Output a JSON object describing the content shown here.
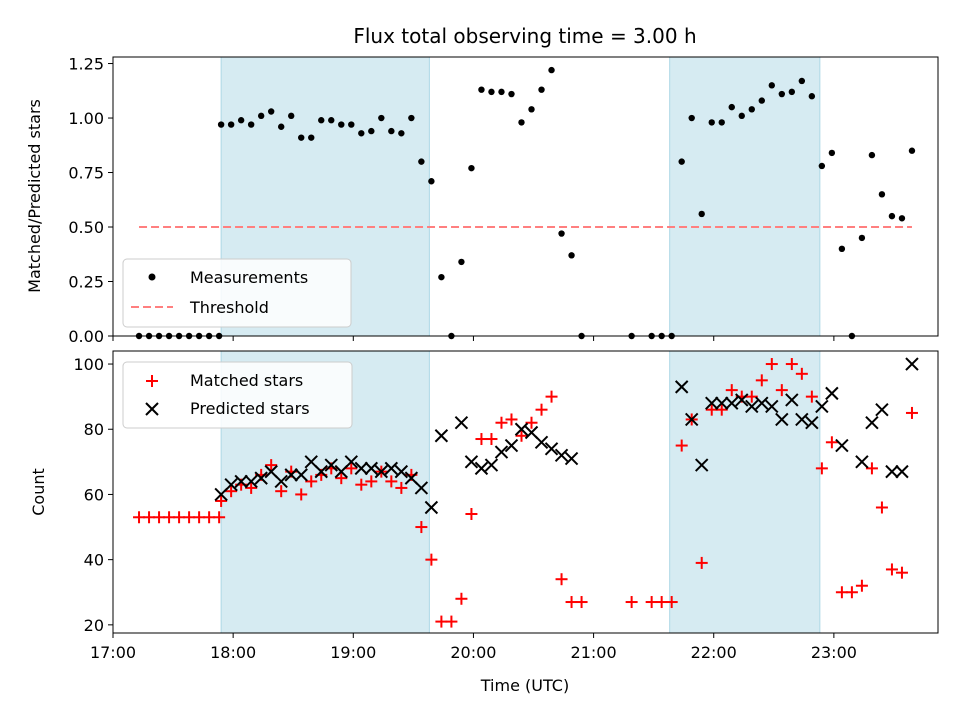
{
  "chart_data": [
    {
      "type": "scatter",
      "title": "Flux total observing time = 3.00 h",
      "xlabel": "",
      "ylabel": "Matched/Predicted stars",
      "xlim": [
        "17:00",
        "23:52"
      ],
      "ylim": [
        0,
        1.28
      ],
      "yticks": [
        "0.00",
        "0.25",
        "0.50",
        "0.75",
        "1.00",
        "1.25"
      ],
      "shaded_intervals": [
        [
          "17:54",
          "19:38"
        ],
        [
          "21:38",
          "22:53"
        ]
      ],
      "legend_position": "lower-left",
      "series": [
        {
          "name": "Measurements",
          "color": "#000000",
          "marker": "dot",
          "points": [
            [
              "17:13",
              0
            ],
            [
              "17:18",
              0
            ],
            [
              "17:23",
              0
            ],
            [
              "17:28",
              0
            ],
            [
              "17:33",
              0
            ],
            [
              "17:38",
              0
            ],
            [
              "17:43",
              0
            ],
            [
              "17:48",
              0
            ],
            [
              "17:53",
              0
            ],
            [
              "17:54",
              0.97
            ],
            [
              "17:59",
              0.97
            ],
            [
              "18:04",
              0.99
            ],
            [
              "18:09",
              0.97
            ],
            [
              "18:14",
              1.01
            ],
            [
              "18:19",
              1.03
            ],
            [
              "18:24",
              0.96
            ],
            [
              "18:29",
              1.01
            ],
            [
              "18:34",
              0.91
            ],
            [
              "18:39",
              0.91
            ],
            [
              "18:44",
              0.99
            ],
            [
              "18:49",
              0.99
            ],
            [
              "18:54",
              0.97
            ],
            [
              "18:59",
              0.97
            ],
            [
              "19:04",
              0.93
            ],
            [
              "19:09",
              0.94
            ],
            [
              "19:14",
              1.0
            ],
            [
              "19:19",
              0.94
            ],
            [
              "19:24",
              0.93
            ],
            [
              "19:29",
              1.0
            ],
            [
              "19:34",
              0.8
            ],
            [
              "19:39",
              0.71
            ],
            [
              "19:44",
              0.27
            ],
            [
              "19:49",
              0
            ],
            [
              "19:54",
              0.34
            ],
            [
              "19:59",
              0.77
            ],
            [
              "20:04",
              1.13
            ],
            [
              "20:09",
              1.12
            ],
            [
              "20:14",
              1.12
            ],
            [
              "20:19",
              1.11
            ],
            [
              "20:24",
              0.98
            ],
            [
              "20:29",
              1.04
            ],
            [
              "20:34",
              1.13
            ],
            [
              "20:39",
              1.22
            ],
            [
              "20:44",
              0.47
            ],
            [
              "20:49",
              0.37
            ],
            [
              "20:54",
              0
            ],
            [
              "21:19",
              0
            ],
            [
              "21:29",
              0
            ],
            [
              "21:34",
              0
            ],
            [
              "21:39",
              0
            ],
            [
              "21:44",
              0.8
            ],
            [
              "21:49",
              1.0
            ],
            [
              "21:54",
              0.56
            ],
            [
              "21:59",
              0.98
            ],
            [
              "22:04",
              0.98
            ],
            [
              "22:09",
              1.05
            ],
            [
              "22:14",
              1.01
            ],
            [
              "22:19",
              1.04
            ],
            [
              "22:24",
              1.08
            ],
            [
              "22:29",
              1.15
            ],
            [
              "22:34",
              1.11
            ],
            [
              "22:39",
              1.12
            ],
            [
              "22:44",
              1.17
            ],
            [
              "22:49",
              1.1
            ],
            [
              "22:54",
              0.78
            ],
            [
              "22:59",
              0.84
            ],
            [
              "23:04",
              0.4
            ],
            [
              "23:09",
              0
            ],
            [
              "23:14",
              0.45
            ],
            [
              "23:19",
              0.83
            ],
            [
              "23:24",
              0.65
            ],
            [
              "23:29",
              0.55
            ],
            [
              "23:34",
              0.54
            ],
            [
              "23:39",
              0.85
            ]
          ]
        },
        {
          "name": "Threshold",
          "color": "#ff7f7f",
          "marker": "dashed-line",
          "points": [
            [
              "17:13",
              0.5
            ],
            [
              "23:39",
              0.5
            ]
          ]
        }
      ]
    },
    {
      "type": "scatter",
      "title": "",
      "xlabel": "Time (UTC)",
      "ylabel": "Count",
      "xlim": [
        "17:00",
        "23:52"
      ],
      "ylim": [
        17.5,
        104
      ],
      "yticks": [
        "20",
        "40",
        "60",
        "80",
        "100"
      ],
      "xticks": [
        "17:00",
        "18:00",
        "19:00",
        "20:00",
        "21:00",
        "22:00",
        "23:00"
      ],
      "shaded_intervals": [
        [
          "17:54",
          "19:38"
        ],
        [
          "21:38",
          "22:53"
        ]
      ],
      "legend_position": "top-left",
      "series": [
        {
          "name": "Matched stars",
          "color": "#ff0000",
          "marker": "plus",
          "points": [
            [
              "17:13",
              53
            ],
            [
              "17:18",
              53
            ],
            [
              "17:23",
              53
            ],
            [
              "17:28",
              53
            ],
            [
              "17:33",
              53
            ],
            [
              "17:38",
              53
            ],
            [
              "17:43",
              53
            ],
            [
              "17:48",
              53
            ],
            [
              "17:53",
              53
            ],
            [
              "17:54",
              58
            ],
            [
              "17:59",
              61
            ],
            [
              "18:04",
              63
            ],
            [
              "18:09",
              62
            ],
            [
              "18:14",
              66
            ],
            [
              "18:19",
              69
            ],
            [
              "18:24",
              61
            ],
            [
              "18:29",
              67
            ],
            [
              "18:34",
              60
            ],
            [
              "18:39",
              64
            ],
            [
              "18:44",
              66
            ],
            [
              "18:49",
              68
            ],
            [
              "18:54",
              65
            ],
            [
              "18:59",
              68
            ],
            [
              "19:04",
              63
            ],
            [
              "19:09",
              64
            ],
            [
              "19:14",
              67
            ],
            [
              "19:19",
              64
            ],
            [
              "19:24",
              62
            ],
            [
              "19:29",
              66
            ],
            [
              "19:34",
              50
            ],
            [
              "19:39",
              40
            ],
            [
              "19:44",
              21
            ],
            [
              "19:49",
              21
            ],
            [
              "19:54",
              28
            ],
            [
              "19:59",
              54
            ],
            [
              "20:04",
              77
            ],
            [
              "20:09",
              77
            ],
            [
              "20:14",
              82
            ],
            [
              "20:19",
              83
            ],
            [
              "20:24",
              78
            ],
            [
              "20:29",
              82
            ],
            [
              "20:34",
              86
            ],
            [
              "20:39",
              90
            ],
            [
              "20:44",
              34
            ],
            [
              "20:49",
              27
            ],
            [
              "20:54",
              27
            ],
            [
              "21:19",
              27
            ],
            [
              "21:29",
              27
            ],
            [
              "21:34",
              27
            ],
            [
              "21:39",
              27
            ],
            [
              "21:44",
              75
            ],
            [
              "21:49",
              83
            ],
            [
              "21:54",
              39
            ],
            [
              "21:59",
              86
            ],
            [
              "22:04",
              86
            ],
            [
              "22:09",
              92
            ],
            [
              "22:14",
              90
            ],
            [
              "22:19",
              90
            ],
            [
              "22:24",
              95
            ],
            [
              "22:29",
              100
            ],
            [
              "22:34",
              92
            ],
            [
              "22:39",
              100
            ],
            [
              "22:44",
              97
            ],
            [
              "22:49",
              90
            ],
            [
              "22:54",
              68
            ],
            [
              "22:59",
              76
            ],
            [
              "23:04",
              30
            ],
            [
              "23:09",
              30
            ],
            [
              "23:14",
              32
            ],
            [
              "23:19",
              68
            ],
            [
              "23:24",
              56
            ],
            [
              "23:29",
              37
            ],
            [
              "23:34",
              36
            ],
            [
              "23:39",
              85
            ]
          ]
        },
        {
          "name": "Predicted stars",
          "color": "#000000",
          "marker": "x",
          "points": [
            [
              "17:54",
              60
            ],
            [
              "17:59",
              63
            ],
            [
              "18:04",
              64
            ],
            [
              "18:09",
              64
            ],
            [
              "18:14",
              65
            ],
            [
              "18:19",
              67
            ],
            [
              "18:24",
              64
            ],
            [
              "18:29",
              66
            ],
            [
              "18:34",
              66
            ],
            [
              "18:39",
              70
            ],
            [
              "18:44",
              67
            ],
            [
              "18:49",
              69
            ],
            [
              "18:54",
              67
            ],
            [
              "18:59",
              70
            ],
            [
              "19:04",
              68
            ],
            [
              "19:09",
              68
            ],
            [
              "19:14",
              67
            ],
            [
              "19:19",
              68
            ],
            [
              "19:24",
              67
            ],
            [
              "19:29",
              65
            ],
            [
              "19:34",
              62
            ],
            [
              "19:39",
              56
            ],
            [
              "19:44",
              78
            ],
            [
              "19:54",
              82
            ],
            [
              "19:59",
              70
            ],
            [
              "20:04",
              68
            ],
            [
              "20:09",
              69
            ],
            [
              "20:14",
              73
            ],
            [
              "20:19",
              75
            ],
            [
              "20:24",
              80
            ],
            [
              "20:29",
              79
            ],
            [
              "20:34",
              76
            ],
            [
              "20:39",
              74
            ],
            [
              "20:44",
              72
            ],
            [
              "20:49",
              71
            ],
            [
              "21:44",
              93
            ],
            [
              "21:49",
              83
            ],
            [
              "21:54",
              69
            ],
            [
              "21:59",
              88
            ],
            [
              "22:04",
              88
            ],
            [
              "22:09",
              88
            ],
            [
              "22:14",
              89
            ],
            [
              "22:19",
              87
            ],
            [
              "22:24",
              88
            ],
            [
              "22:29",
              87
            ],
            [
              "22:34",
              83
            ],
            [
              "22:39",
              89
            ],
            [
              "22:44",
              83
            ],
            [
              "22:49",
              82
            ],
            [
              "22:54",
              87
            ],
            [
              "22:59",
              91
            ],
            [
              "23:04",
              75
            ],
            [
              "23:14",
              70
            ],
            [
              "23:19",
              82
            ],
            [
              "23:24",
              86
            ],
            [
              "23:29",
              67
            ],
            [
              "23:34",
              67
            ],
            [
              "23:39",
              100
            ]
          ]
        }
      ]
    }
  ]
}
